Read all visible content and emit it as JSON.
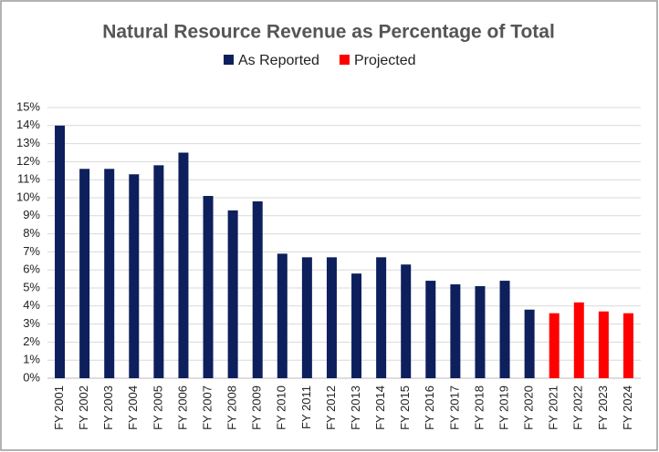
{
  "chart_data": {
    "type": "bar",
    "title": "Natural Resource Revenue as Percentage of Total",
    "categories": [
      "FY 2001",
      "FY 2002",
      "FY 2003",
      "FY 2004",
      "FY 2005",
      "FY 2006",
      "FY 2007",
      "FY 2008",
      "FY 2009",
      "FY 2010",
      "FY 2011",
      "FY 2012",
      "FY 2013",
      "FY 2014",
      "FY 2015",
      "FY 2016",
      "FY 2017",
      "FY 2018",
      "FY 2019",
      "FY 2020",
      "FY 2021",
      "FY 2022",
      "FY 2023",
      "FY 2024"
    ],
    "series": [
      {
        "name": "As Reported",
        "color": "#0d1f5c",
        "values": [
          14.0,
          11.6,
          11.6,
          11.3,
          11.8,
          12.5,
          10.1,
          9.3,
          9.8,
          6.9,
          6.7,
          6.7,
          5.8,
          6.7,
          6.3,
          5.4,
          5.2,
          5.1,
          5.4,
          3.8,
          null,
          null,
          null,
          null
        ]
      },
      {
        "name": "Projected",
        "color": "#ff0000",
        "values": [
          null,
          null,
          null,
          null,
          null,
          null,
          null,
          null,
          null,
          null,
          null,
          null,
          null,
          null,
          null,
          null,
          null,
          null,
          null,
          null,
          3.6,
          4.2,
          3.7,
          3.6
        ]
      }
    ],
    "ylim": [
      0,
      15
    ],
    "yticks": [
      {
        "value": 0,
        "label": "0%"
      },
      {
        "value": 1,
        "label": "1%"
      },
      {
        "value": 2,
        "label": "2%"
      },
      {
        "value": 3,
        "label": "3%"
      },
      {
        "value": 4,
        "label": "4%"
      },
      {
        "value": 5,
        "label": "5%"
      },
      {
        "value": 6,
        "label": "6%"
      },
      {
        "value": 7,
        "label": "7%"
      },
      {
        "value": 8,
        "label": "8%"
      },
      {
        "value": 9,
        "label": "9%"
      },
      {
        "value": 10,
        "label": "10%"
      },
      {
        "value": 11,
        "label": "11%"
      },
      {
        "value": 12,
        "label": "12%"
      },
      {
        "value": 13,
        "label": "13%"
      },
      {
        "value": 14,
        "label": "14%"
      },
      {
        "value": 15,
        "label": "15%"
      }
    ],
    "grid": true
  }
}
